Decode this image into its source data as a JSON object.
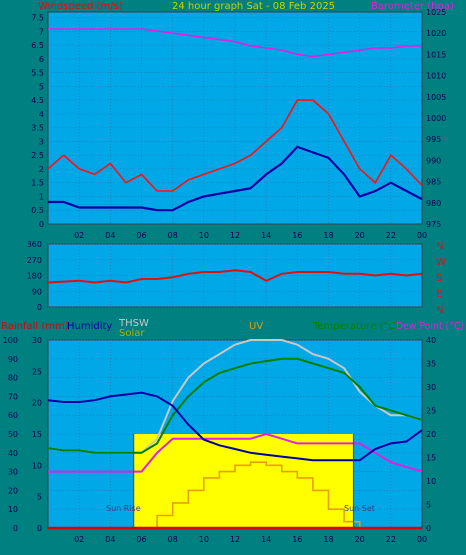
{
  "colors": {
    "background": "#008080",
    "plot_bg": "#00A8E8",
    "border": "#3C3C3C",
    "grid": "#3070B0",
    "wind_gust": "#FF1010",
    "wind_speed": "#0000A0",
    "barometer": "#E020E0",
    "direction": "#E01010",
    "rain": "#E00000",
    "humidity": "#0000A0",
    "solar": "#FFFF00",
    "solar_text": "#B0B000",
    "uv": "#E8A000",
    "temperature": "#008000",
    "thsw": "#C8C8C8",
    "dewpoint": "#E020E0",
    "title_text": "#D0D000"
  },
  "chart_data": [
    {
      "type": "line",
      "title": "24 hour graph Sat - 08 Feb 2025",
      "ylabel": "Windspeed (m/s)",
      "y2label": "Barometer (hpa)",
      "ylim": [
        0,
        7.7
      ],
      "y2lim": [
        975,
        1025
      ],
      "x_tick_labels": [
        "02",
        "04",
        "06",
        "08",
        "10",
        "12",
        "14",
        "16",
        "18",
        "20",
        "22",
        "00"
      ],
      "y_ticks": [
        0,
        0.5,
        1,
        1.5,
        2,
        2.5,
        3,
        3.5,
        4,
        4.5,
        5,
        5.5,
        6,
        6.5,
        7,
        7.5
      ],
      "y2_ticks": [
        975,
        980,
        985,
        990,
        995,
        1000,
        1005,
        1010,
        1015,
        1020,
        1025
      ],
      "x": [
        0,
        1,
        2,
        3,
        4,
        5,
        6,
        7,
        8,
        9,
        10,
        11,
        12,
        13,
        14,
        15,
        16,
        17,
        18,
        19,
        20,
        21,
        22,
        23,
        24
      ],
      "series": [
        {
          "key": "gust",
          "values": [
            2.0,
            2.5,
            2.0,
            1.8,
            2.2,
            1.5,
            1.8,
            1.2,
            1.2,
            1.6,
            1.8,
            2.0,
            2.2,
            2.5,
            3.0,
            3.5,
            4.5,
            4.5,
            4.0,
            3.0,
            2.0,
            1.5,
            2.5,
            2.0,
            1.4
          ]
        },
        {
          "key": "speed",
          "values": [
            0.8,
            0.8,
            0.6,
            0.6,
            0.6,
            0.6,
            0.6,
            0.5,
            0.5,
            0.8,
            1.0,
            1.1,
            1.2,
            1.3,
            1.8,
            2.2,
            2.8,
            2.6,
            2.4,
            1.8,
            1.0,
            1.2,
            1.5,
            1.2,
            0.9
          ]
        },
        {
          "key": "barometer",
          "values": [
            1021,
            1021,
            1021,
            1021,
            1021,
            1021,
            1021,
            1020.5,
            1020,
            1019.5,
            1019,
            1018.5,
            1018,
            1017,
            1016.5,
            1016,
            1015,
            1014.5,
            1015,
            1015.5,
            1016,
            1016.5,
            1016.5,
            1017,
            1017
          ]
        }
      ]
    },
    {
      "type": "scatter",
      "ylim": [
        0,
        360
      ],
      "y_ticks": [
        0,
        90,
        180,
        270,
        360
      ],
      "y_tick_labels": [
        "0",
        "90",
        "180",
        "270",
        "360"
      ],
      "compass_labels": [
        "N",
        "W",
        "S",
        "E",
        "N"
      ],
      "x": [
        0,
        1,
        2,
        3,
        4,
        5,
        6,
        7,
        8,
        9,
        10,
        11,
        12,
        13,
        14,
        15,
        16,
        17,
        18,
        19,
        20,
        21,
        22,
        23,
        24
      ],
      "values": [
        140,
        145,
        150,
        140,
        150,
        140,
        160,
        160,
        170,
        190,
        200,
        200,
        210,
        200,
        150,
        190,
        200,
        200,
        200,
        190,
        190,
        180,
        190,
        180,
        190
      ]
    },
    {
      "type": "line",
      "labels": {
        "rain": "Rainfall (mm)",
        "humidity": "Humidity",
        "solar": "Solar",
        "thsw": "THSW",
        "uv": "UV",
        "temperature": "Temperature (°C)",
        "dewpoint": "Dew Point (°C)"
      },
      "y_left_outer_ticks": [
        0,
        10,
        20,
        30,
        40,
        50,
        60,
        70,
        80,
        90,
        100
      ],
      "y_left_inner_ticks": [
        0,
        5,
        10,
        15,
        20,
        25,
        30
      ],
      "y_right_ticks": [
        0,
        5,
        10,
        15,
        20,
        25,
        30,
        35,
        40
      ],
      "ylim_outer": [
        0,
        100
      ],
      "ylim_inner": [
        0,
        30
      ],
      "ylim_right": [
        0,
        40
      ],
      "annotations": [
        "Sun Rise",
        "Sun Set"
      ],
      "sunrise_hour": 5.5,
      "sunset_hour": 19.6,
      "x": [
        0,
        1,
        2,
        3,
        4,
        5,
        6,
        7,
        8,
        9,
        10,
        11,
        12,
        13,
        14,
        15,
        16,
        17,
        18,
        19,
        20,
        21,
        22,
        23,
        24
      ],
      "series": [
        {
          "key": "humidity",
          "values": [
            68,
            67,
            67,
            68,
            70,
            71,
            72,
            70,
            65,
            55,
            47,
            44,
            42,
            40,
            39,
            38,
            37,
            36,
            36,
            36,
            36,
            42,
            45,
            46,
            52
          ]
        },
        {
          "key": "temperature",
          "values": [
            17,
            16.5,
            16.5,
            16,
            16,
            16,
            16,
            18,
            24,
            28,
            31,
            33,
            34,
            35,
            35.5,
            36,
            36,
            35,
            34,
            33,
            30,
            26,
            25,
            24,
            23
          ]
        },
        {
          "key": "thsw",
          "values": [
            17,
            16.5,
            16.5,
            16,
            16,
            16,
            16,
            19,
            27,
            32,
            35,
            37,
            39,
            40,
            40,
            40,
            39,
            37,
            36,
            34,
            29,
            26,
            24,
            24,
            23
          ]
        },
        {
          "key": "dewpoint",
          "values": [
            12,
            12,
            12,
            12,
            12,
            12,
            12,
            16,
            19,
            19,
            19,
            19,
            19,
            19,
            20,
            19,
            18,
            18,
            18,
            18,
            18,
            16,
            14,
            13,
            12
          ]
        },
        {
          "key": "solar_uv",
          "values": [
            0,
            0,
            0,
            0,
            0,
            0,
            0,
            2,
            4,
            6,
            8,
            9,
            10,
            10.5,
            10,
            9,
            8,
            6,
            3,
            1,
            0,
            0,
            0,
            0,
            0
          ]
        },
        {
          "key": "rain",
          "values": [
            0,
            0,
            0,
            0,
            0,
            0,
            0,
            0,
            0,
            0,
            0,
            0,
            0,
            0,
            0,
            0,
            0,
            0,
            0,
            0,
            0,
            0,
            0,
            0,
            0
          ]
        }
      ],
      "solar_values": [
        0,
        0,
        0,
        0,
        0,
        0,
        0,
        1,
        1,
        1,
        1,
        1,
        1,
        1,
        1,
        1,
        1,
        1,
        1,
        1,
        0,
        0,
        0,
        0,
        0
      ],
      "x_tick_labels": [
        "02",
        "04",
        "06",
        "08",
        "10",
        "12",
        "14",
        "16",
        "18",
        "20",
        "22",
        "00"
      ]
    }
  ]
}
